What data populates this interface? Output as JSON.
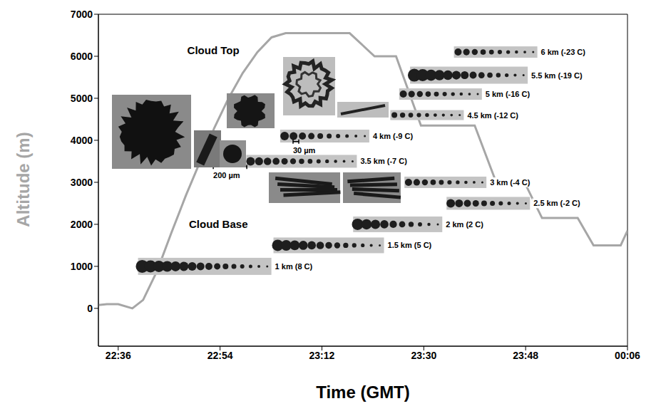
{
  "chart_data": {
    "type": "line",
    "x_label": "Time (GMT)",
    "y_label": "Altitude (m)",
    "color": "#a6a6a6",
    "x": [
      1352.5,
      1354,
      1356,
      1358.5,
      1360.4,
      1362.9,
      1365.4,
      1368,
      1370.5,
      1373,
      1375.5,
      1378,
      1380.6,
      1383.1,
      1385.6,
      1396.9,
      1401.3,
      1405.1,
      1409.5,
      1419,
      1422.8,
      1427.8,
      1430.9,
      1437.2,
      1440,
      1444.8,
      1446
    ],
    "values": [
      80,
      100,
      100,
      0,
      200,
      900,
      1800,
      2700,
      3500,
      4300,
      5000,
      5600,
      6100,
      6450,
      6550,
      6550,
      6000,
      6000,
      4350,
      4350,
      3000,
      3000,
      2150,
      2150,
      1500,
      1500,
      1850
    ],
    "xlim": [
      1352.5,
      1446
    ],
    "xticks": [
      {
        "value": 1356,
        "label": "22:36"
      },
      {
        "value": 1374,
        "label": "22:54"
      },
      {
        "value": 1392,
        "label": "23:12"
      },
      {
        "value": 1410,
        "label": "23:30"
      },
      {
        "value": 1428,
        "label": "23:48"
      },
      {
        "value": 1446,
        "label": "00:06"
      }
    ],
    "ylim": [
      -900,
      7000
    ],
    "yticks": [
      0,
      1000,
      2000,
      3000,
      4000,
      5000,
      6000,
      7000
    ],
    "grid": false,
    "annotations": [
      {
        "text": "Cloud Top",
        "x": 1368.2,
        "y": 6150
      },
      {
        "text": "Cloud Base",
        "x": 1368.5,
        "y": 2000
      }
    ],
    "scale_bars": [
      {
        "text": "30 µm",
        "x": 1386.9,
        "y": 3800
      },
      {
        "text": "200 µm",
        "x": 1372.8,
        "y": 3200
      }
    ],
    "profile_labels": [
      {
        "text": "1 km (8 C)",
        "x": 1383.7,
        "y": 1000
      },
      {
        "text": "1.5 km (5 C)",
        "x": 1403.6,
        "y": 1500
      },
      {
        "text": "2 km (2 C)",
        "x": 1413.9,
        "y": 2000
      },
      {
        "text": "2.5 km (-2 C)",
        "x": 1429.4,
        "y": 2500
      },
      {
        "text": "3 km (-4 C)",
        "x": 1421.7,
        "y": 3000
      },
      {
        "text": "3.5 km (-7 C)",
        "x": 1398.8,
        "y": 3500
      },
      {
        "text": "4 km (-9 C)",
        "x": 1401.0,
        "y": 4100
      },
      {
        "text": "4.5 km (-12 C)",
        "x": 1417.7,
        "y": 4600
      },
      {
        "text": "5 km (-16 C)",
        "x": 1420.9,
        "y": 5100
      },
      {
        "text": "5.5 km (-19 C)",
        "x": 1429.0,
        "y": 5550
      },
      {
        "text": "6 km (-23 C)",
        "x": 1430.7,
        "y": 6100
      }
    ]
  }
}
